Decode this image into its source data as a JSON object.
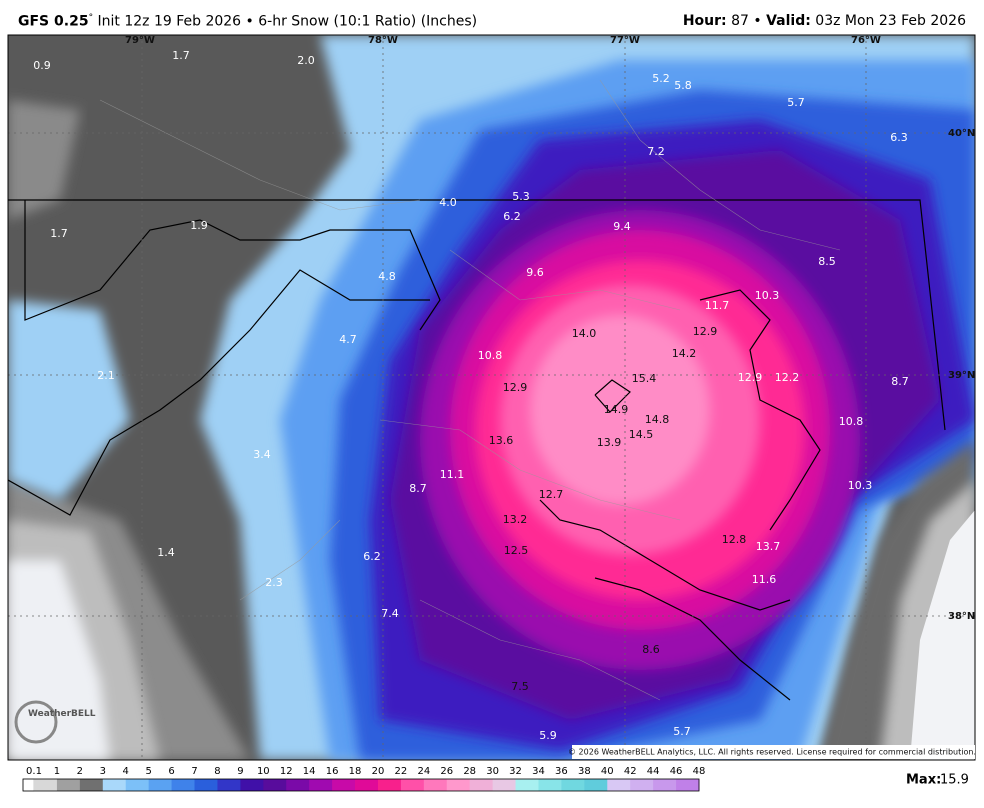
{
  "header": {
    "model": "GFS 0.25",
    "degree": "°",
    "title": "Init 12z 19 Feb 2026 • 6-hr Snow (10:1 Ratio) (Inches)",
    "hour_label": "Hour:",
    "hour": "87",
    "separator": "•",
    "valid_label": "Valid:",
    "valid": "03z Mon 23 Feb 2026"
  },
  "map": {
    "longitudes": [
      "79°W",
      "78°W",
      "77°W",
      "76°W"
    ],
    "latitudes": [
      "40°N",
      "39°N",
      "38°N"
    ],
    "values": [
      "0.9",
      "1.7",
      "2.0",
      "5.2",
      "5.8",
      "5.7",
      "6.3",
      "7.2",
      "4.0",
      "5.3",
      "6.2",
      "9.4",
      "1.7",
      "1.9",
      "8.5",
      "9.6",
      "4.8",
      "10.3",
      "11.7",
      "12.9",
      "14.0",
      "4.7",
      "10.8",
      "14.2",
      "2.1",
      "15.4",
      "12.9",
      "12.2",
      "8.7",
      "12.9",
      "14.9",
      "14.8",
      "10.8",
      "14.5",
      "13.6",
      "13.9",
      "3.4",
      "11.1",
      "8.7",
      "10.3",
      "12.7",
      "13.2",
      "12.8",
      "13.7",
      "12.5",
      "1.4",
      "6.2",
      "11.6",
      "2.3",
      "7.4",
      "8.6",
      "7.5",
      "5.7",
      "5.9"
    ]
  },
  "legend": {
    "ticks": [
      0.1,
      1,
      2,
      3,
      4,
      5,
      6,
      7,
      8,
      9,
      10,
      12,
      14,
      16,
      18,
      20,
      22,
      24,
      26,
      28,
      30,
      32,
      34,
      36,
      38,
      40,
      42,
      44,
      46,
      48
    ],
    "colors": [
      "#d8d8d8",
      "#a0a0a0",
      "#707070",
      "#a9d8fa",
      "#7cc0f8",
      "#5aa2f2",
      "#3f82ea",
      "#2a5fdc",
      "#3236c8",
      "#4010a8",
      "#580c9c",
      "#7a0aa8",
      "#a00ab0",
      "#c80aa8",
      "#e00a98",
      "#f8208c",
      "#ff50a8",
      "#ff78bc",
      "#ff98cc",
      "#f0b0d8",
      "#e8c8e4",
      "#a8f0f0",
      "#88e4e8",
      "#70d8e0",
      "#60ccdc",
      "#d8c8f4",
      "#d0b0f0",
      "#c898ec",
      "#c080e8"
    ],
    "max_label": "Max:",
    "max": 15.9
  },
  "copyright": "© 2026 WeatherBELL Analytics, LLC. All rights reserved. License required for commercial distribution.",
  "logo": "WeatherBELL"
}
